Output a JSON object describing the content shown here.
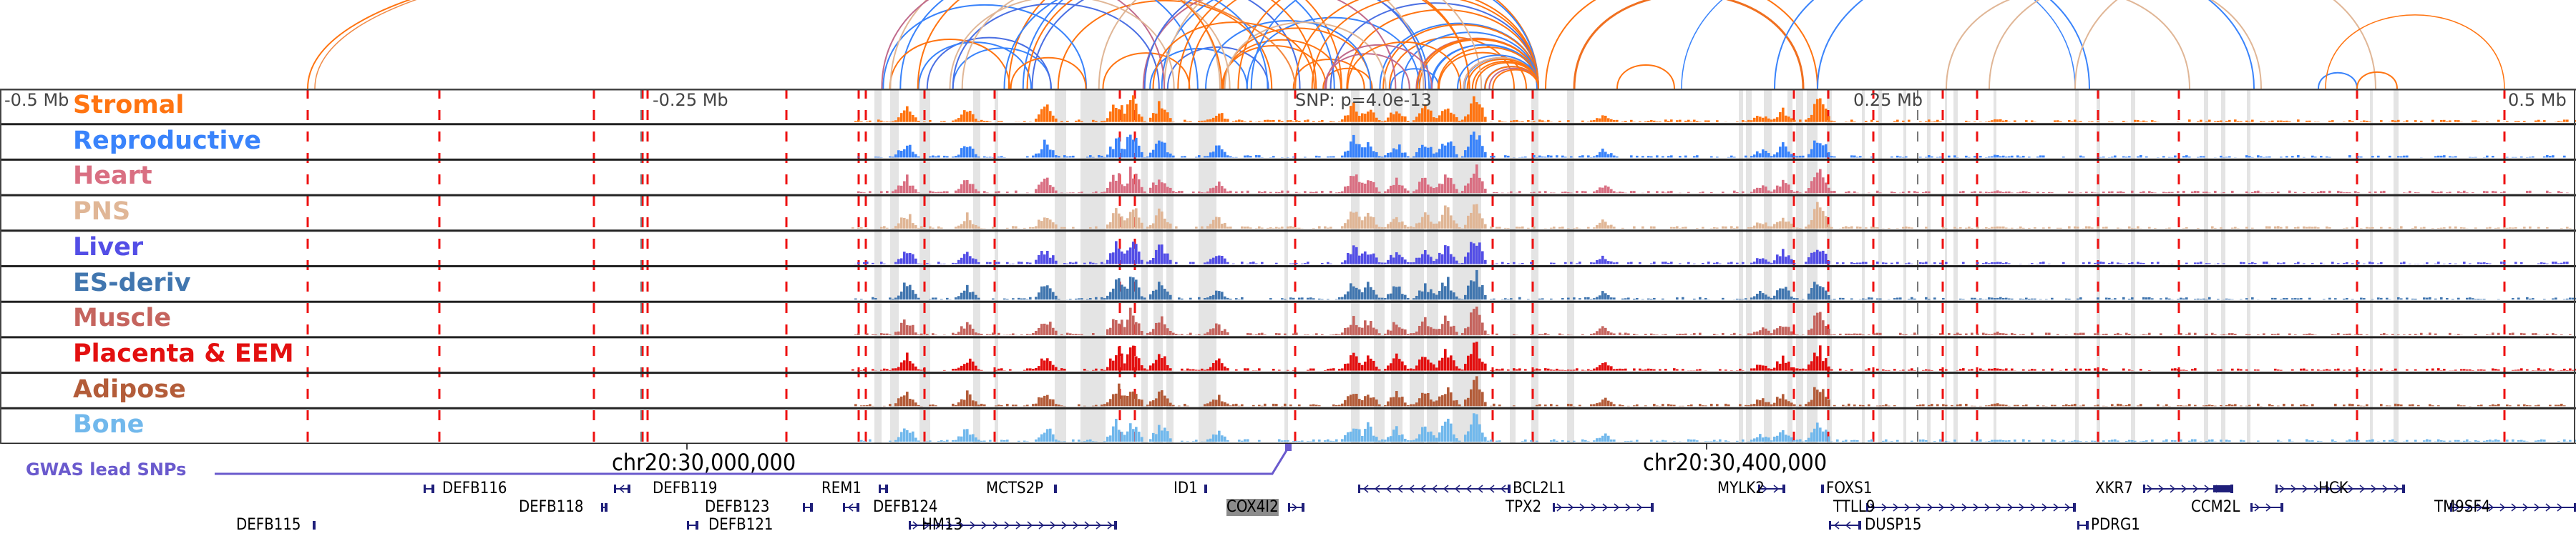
{
  "axis": {
    "left_label": "-0.5 Mb",
    "mid_left_label": "-0.25 Mb",
    "mid_right_label": "0.25 Mb",
    "right_label": "0.5 Mb",
    "snp_label": "SNP: p=4.0e-13",
    "coord_left": "chr20:30,000,000",
    "coord_right": "chr20:30,400,000"
  },
  "tracks": [
    {
      "name": "Stromal",
      "color": "#ff7411"
    },
    {
      "name": "Reproductive",
      "color": "#3983fb"
    },
    {
      "name": "Heart",
      "color": "#d96f82"
    },
    {
      "name": "PNS",
      "color": "#e0b696"
    },
    {
      "name": "Liver",
      "color": "#534ee6"
    },
    {
      "name": "ES-deriv",
      "color": "#4176af"
    },
    {
      "name": "Muscle",
      "color": "#c5645e"
    },
    {
      "name": "Placenta & EEM",
      "color": "#e30f0f"
    },
    {
      "name": "Adipose",
      "color": "#b35c39"
    },
    {
      "name": "Bone",
      "color": "#71b8ec"
    }
  ],
  "gwas": {
    "label": "GWAS lead SNPs",
    "color": "#6a5acd"
  },
  "genes": [
    {
      "name": "DEFB115",
      "strand": "none",
      "row": 2
    },
    {
      "name": "DEFB116",
      "strand": "-",
      "row": 0
    },
    {
      "name": "DEFB118",
      "strand": "+",
      "row": 1
    },
    {
      "name": "DEFB119",
      "strand": "-",
      "row": 0
    },
    {
      "name": "DEFB123",
      "strand": "+",
      "row": 1
    },
    {
      "name": "DEFB121",
      "strand": "-",
      "row": 2
    },
    {
      "name": "REM1",
      "strand": "+",
      "row": 0
    },
    {
      "name": "DEFB124",
      "strand": "-",
      "row": 1
    },
    {
      "name": "MCTS2P",
      "strand": "none",
      "row": 0
    },
    {
      "name": "HM13",
      "strand": "+",
      "row": 2
    },
    {
      "name": "ID1",
      "strand": "none",
      "row": 0
    },
    {
      "name": "COX4I2",
      "strand": "+",
      "row": 1,
      "highlighted": true
    },
    {
      "name": "BCL2L1",
      "strand": "-",
      "row": 0
    },
    {
      "name": "TPX2",
      "strand": "+",
      "row": 1
    },
    {
      "name": "MYLK2",
      "strand": "+",
      "row": 0
    },
    {
      "name": "FOXS1",
      "strand": "none",
      "row": 0
    },
    {
      "name": "TTLL9",
      "strand": "+",
      "row": 1
    },
    {
      "name": "DUSP15",
      "strand": "-",
      "row": 2
    },
    {
      "name": "XKR7",
      "strand": "+",
      "row": 0
    },
    {
      "name": "CCM2L",
      "strand": "+",
      "row": 1
    },
    {
      "name": "PDRG1",
      "strand": "-",
      "row": 2
    },
    {
      "name": "HCK",
      "strand": "+",
      "row": 0
    },
    {
      "name": "TM9SF4",
      "strand": "+",
      "row": 1
    }
  ],
  "colors": {
    "grid_red": "#ee1111",
    "shade": "#e4e4e4",
    "gene_color": "#1f1f7a",
    "highlight": "#8c8c8c"
  }
}
